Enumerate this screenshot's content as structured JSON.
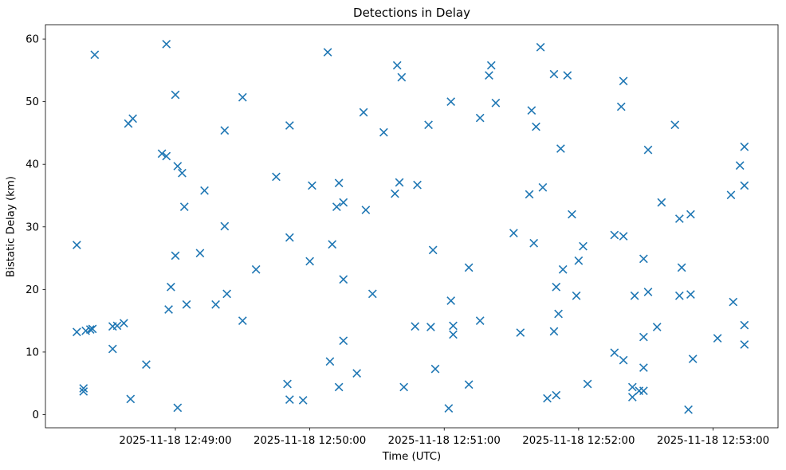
{
  "figure": {
    "background": "#ffffff",
    "title": "Detections in Delay",
    "xlabel": "Time (UTC)",
    "ylabel": "Bistatic Delay (km)"
  },
  "chart_data": {
    "type": "scatter",
    "title": "Detections in Delay",
    "xlabel": "Time (UTC)",
    "ylabel": "Bistatic Delay (km)",
    "grid": false,
    "legend": "none",
    "marker": {
      "shape": "x",
      "color": "#1f77b4"
    },
    "x_date": "2025-11-18",
    "x_tick_labels": [
      "2025-11-18 12:49:00",
      "2025-11-18 12:50:00",
      "2025-11-18 12:51:00",
      "2025-11-18 12:52:00",
      "2025-11-18 12:53:00"
    ],
    "y_tick_labels": [
      0,
      10,
      20,
      30,
      40,
      50,
      60
    ],
    "xlim": [
      "12:48:02",
      "12:53:29"
    ],
    "ylim": [
      -2.1,
      62.3
    ],
    "points": [
      [
        "12:48:56",
        59.2
      ],
      [
        "12:48:24",
        57.5
      ],
      [
        "12:49:00",
        51.1
      ],
      [
        "12:49:30",
        50.7
      ],
      [
        "12:48:41",
        47.3
      ],
      [
        "12:48:39",
        46.5
      ],
      [
        "12:49:22",
        45.4
      ],
      [
        "12:49:51",
        46.2
      ],
      [
        "12:48:54",
        41.7
      ],
      [
        "12:48:56",
        41.3
      ],
      [
        "12:49:01",
        39.7
      ],
      [
        "12:49:03",
        38.6
      ],
      [
        "12:49:45",
        38.0
      ],
      [
        "12:49:13",
        35.8
      ],
      [
        "12:49:04",
        33.2
      ],
      [
        "12:49:22",
        30.1
      ],
      [
        "12:49:51",
        28.3
      ],
      [
        "12:48:16",
        27.1
      ],
      [
        "12:49:00",
        25.4
      ],
      [
        "12:49:11",
        25.8
      ],
      [
        "12:49:36",
        23.2
      ],
      [
        "12:48:58",
        20.4
      ],
      [
        "12:49:23",
        19.3
      ],
      [
        "12:49:18",
        17.6
      ],
      [
        "12:49:05",
        17.6
      ],
      [
        "12:48:57",
        16.8
      ],
      [
        "12:49:30",
        15.0
      ],
      [
        "12:48:16",
        13.2
      ],
      [
        "12:48:20",
        13.4
      ],
      [
        "12:48:22",
        13.6
      ],
      [
        "12:48:23",
        13.7
      ],
      [
        "12:48:32",
        14.1
      ],
      [
        "12:48:34",
        14.2
      ],
      [
        "12:48:37",
        14.6
      ],
      [
        "12:48:32",
        10.5
      ],
      [
        "12:48:47",
        8.0
      ],
      [
        "12:48:19",
        4.2
      ],
      [
        "12:48:19",
        3.7
      ],
      [
        "12:48:40",
        2.5
      ],
      [
        "12:49:01",
        1.1
      ],
      [
        "12:49:50",
        4.9
      ],
      [
        "12:49:51",
        2.4
      ],
      [
        "12:49:57",
        2.3
      ],
      [
        "12:50:08",
        57.9
      ],
      [
        "12:50:39",
        55.8
      ],
      [
        "12:50:41",
        53.9
      ],
      [
        "12:51:21",
        55.8
      ],
      [
        "12:51:20",
        54.2
      ],
      [
        "12:51:43",
        58.7
      ],
      [
        "12:51:03",
        50.0
      ],
      [
        "12:51:23",
        49.8
      ],
      [
        "12:50:24",
        48.3
      ],
      [
        "12:51:39",
        48.6
      ],
      [
        "12:51:16",
        47.4
      ],
      [
        "12:50:53",
        46.3
      ],
      [
        "12:51:41",
        46.0
      ],
      [
        "12:50:33",
        45.1
      ],
      [
        "12:50:01",
        36.6
      ],
      [
        "12:50:13",
        37.0
      ],
      [
        "12:50:40",
        37.1
      ],
      [
        "12:50:48",
        36.7
      ],
      [
        "12:50:38",
        35.3
      ],
      [
        "12:50:15",
        33.9
      ],
      [
        "12:50:12",
        33.2
      ],
      [
        "12:50:25",
        32.7
      ],
      [
        "12:51:38",
        35.2
      ],
      [
        "12:51:31",
        29.0
      ],
      [
        "12:51:40",
        27.4
      ],
      [
        "12:50:10",
        27.2
      ],
      [
        "12:50:00",
        24.5
      ],
      [
        "12:50:15",
        21.6
      ],
      [
        "12:50:28",
        19.3
      ],
      [
        "12:50:55",
        26.3
      ],
      [
        "12:51:11",
        23.5
      ],
      [
        "12:51:03",
        18.2
      ],
      [
        "12:50:47",
        14.1
      ],
      [
        "12:50:54",
        14.0
      ],
      [
        "12:51:04",
        14.2
      ],
      [
        "12:51:04",
        12.8
      ],
      [
        "12:51:16",
        15.0
      ],
      [
        "12:51:34",
        13.1
      ],
      [
        "12:50:15",
        11.8
      ],
      [
        "12:50:09",
        8.5
      ],
      [
        "12:50:21",
        6.6
      ],
      [
        "12:50:56",
        7.3
      ],
      [
        "12:50:13",
        4.4
      ],
      [
        "12:50:42",
        4.4
      ],
      [
        "12:51:11",
        4.8
      ],
      [
        "12:51:02",
        1.0
      ],
      [
        "12:51:49",
        54.4
      ],
      [
        "12:51:55",
        54.2
      ],
      [
        "12:52:20",
        53.3
      ],
      [
        "12:52:19",
        49.2
      ],
      [
        "12:52:43",
        46.3
      ],
      [
        "12:51:52",
        42.5
      ],
      [
        "12:52:31",
        42.3
      ],
      [
        "12:53:14",
        42.8
      ],
      [
        "12:53:12",
        39.8
      ],
      [
        "12:51:44",
        36.3
      ],
      [
        "12:53:14",
        36.6
      ],
      [
        "12:53:08",
        35.1
      ],
      [
        "12:52:37",
        33.9
      ],
      [
        "12:52:45",
        31.3
      ],
      [
        "12:52:50",
        32.0
      ],
      [
        "12:51:57",
        32.0
      ],
      [
        "12:52:16",
        28.7
      ],
      [
        "12:52:20",
        28.5
      ],
      [
        "12:52:02",
        26.9
      ],
      [
        "12:52:00",
        24.6
      ],
      [
        "12:51:53",
        23.2
      ],
      [
        "12:51:50",
        20.4
      ],
      [
        "12:51:59",
        19.0
      ],
      [
        "12:52:29",
        24.9
      ],
      [
        "12:52:46",
        23.5
      ],
      [
        "12:52:25",
        19.0
      ],
      [
        "12:52:31",
        19.6
      ],
      [
        "12:52:45",
        19.0
      ],
      [
        "12:52:50",
        19.2
      ],
      [
        "12:53:09",
        18.0
      ],
      [
        "12:51:51",
        16.1
      ],
      [
        "12:51:49",
        13.3
      ],
      [
        "12:52:35",
        14.0
      ],
      [
        "12:52:29",
        12.4
      ],
      [
        "12:53:02",
        12.2
      ],
      [
        "12:53:14",
        14.3
      ],
      [
        "12:53:14",
        11.2
      ],
      [
        "12:52:16",
        9.9
      ],
      [
        "12:52:20",
        8.7
      ],
      [
        "12:52:51",
        8.9
      ],
      [
        "12:52:29",
        7.5
      ],
      [
        "12:52:04",
        4.9
      ],
      [
        "12:51:46",
        2.6
      ],
      [
        "12:51:50",
        3.1
      ],
      [
        "12:52:24",
        4.4
      ],
      [
        "12:52:27",
        3.8
      ],
      [
        "12:52:29",
        3.8
      ],
      [
        "12:52:24",
        2.8
      ],
      [
        "12:52:49",
        0.8
      ]
    ]
  }
}
